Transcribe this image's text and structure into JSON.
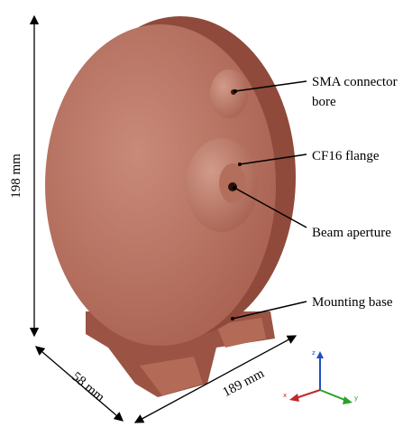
{
  "dimensions": {
    "height": "198 mm",
    "depth": "58 mm",
    "width": "189 mm"
  },
  "callouts": [
    {
      "label": [
        "SMA connector",
        "bore"
      ]
    },
    {
      "label": [
        "CF16 flange"
      ]
    },
    {
      "label": [
        "Beam aperture"
      ]
    },
    {
      "label": [
        "Mounting base"
      ]
    }
  ],
  "axes": {
    "z": "z",
    "x": "x",
    "y": "y"
  }
}
